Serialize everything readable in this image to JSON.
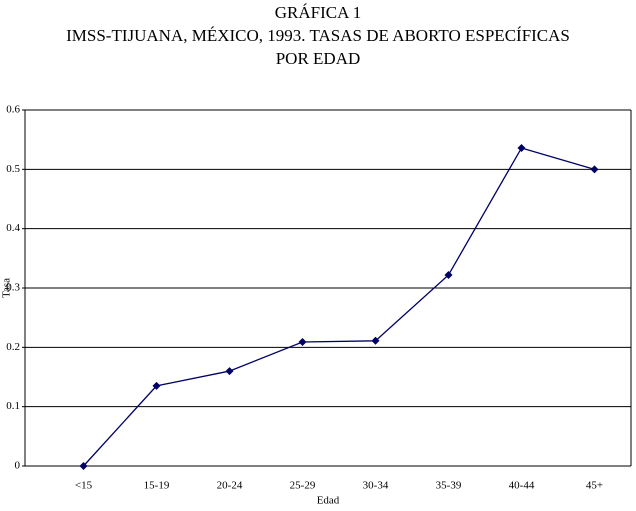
{
  "chart_data": {
    "type": "line",
    "title": [
      "GRÁFICA 1",
      "IMSS-TIJUANA, MÉXICO, 1993. TASAS DE ABORTO ESPECÍFICAS",
      "POR EDAD"
    ],
    "x_label": "Edad",
    "y_label": "Tasa",
    "categories": [
      "<15",
      "15-19",
      "20-24",
      "25-29",
      "30-34",
      "35-39",
      "40-44",
      "45+"
    ],
    "values": [
      0,
      0.135,
      0.16,
      0.209,
      0.211,
      0.322,
      0.536,
      0.5
    ],
    "color": "#000066",
    "ylim": [
      0,
      0.6
    ],
    "yticks": [
      0,
      0.1,
      0.2,
      0.3,
      0.4,
      0.5,
      0.6
    ],
    "grid": true
  }
}
